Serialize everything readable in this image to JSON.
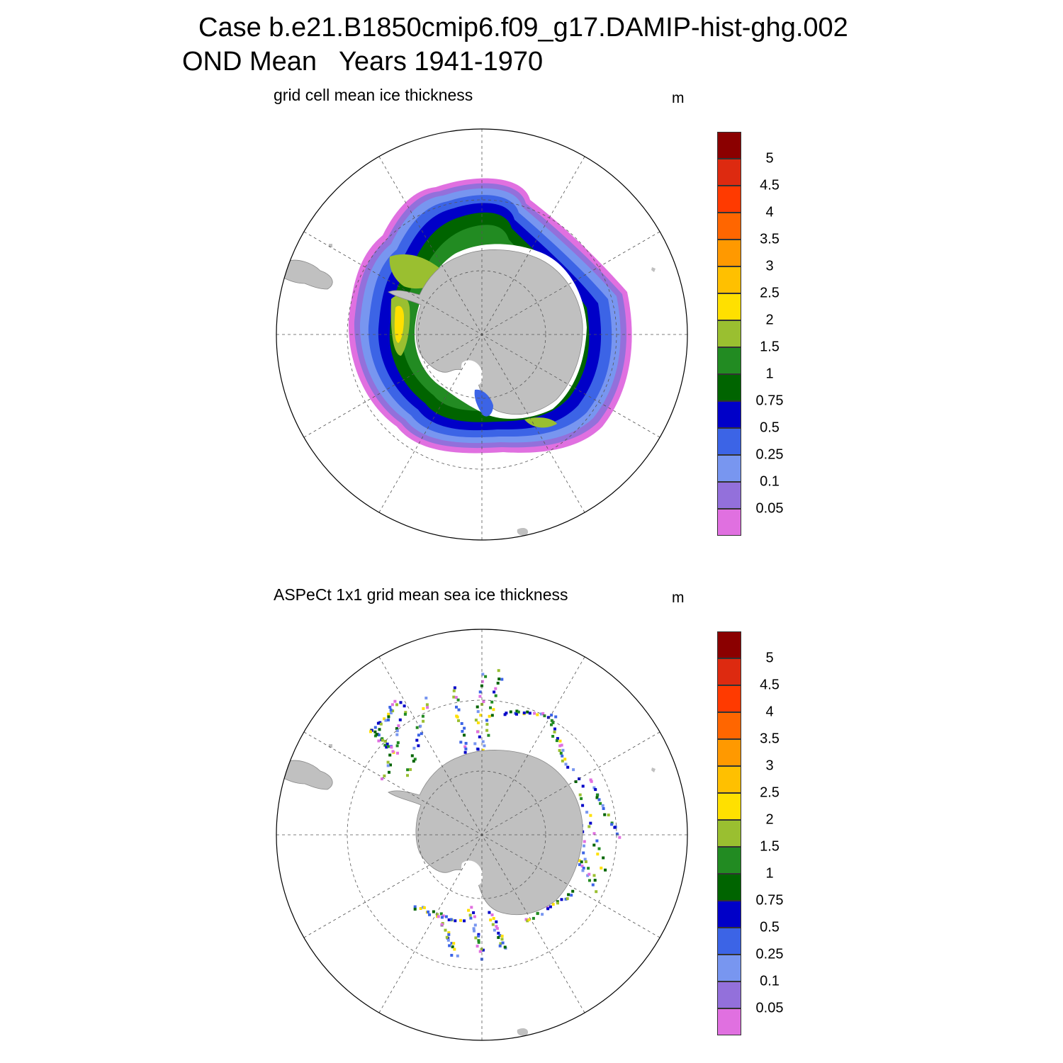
{
  "title_line1": "Case b.e21.B1850cmip6.f09_g17.DAMIP-hist-ghg.002",
  "title_line2": "OND Mean   Years 1941-1970",
  "panels": [
    {
      "subtitle": "grid cell mean ice thickness",
      "units": "m"
    },
    {
      "subtitle": "ASPeCt 1x1 grid mean sea ice thickness",
      "units": "m"
    }
  ],
  "colorbar": {
    "labels": [
      "5",
      "4.5",
      "4",
      "3.5",
      "3",
      "2.5",
      "2",
      "1.5",
      "1",
      "0.75",
      "0.5",
      "0.25",
      "0.1",
      "0.05"
    ],
    "colors": [
      "#8b0000",
      "#dd2a10",
      "#ff3a00",
      "#ff6600",
      "#ff9900",
      "#ffc000",
      "#ffe000",
      "#9abf30",
      "#228b22",
      "#006400",
      "#0000c8",
      "#3c64e6",
      "#7896f0",
      "#9370db",
      "#e070e0"
    ]
  },
  "land_color": "#c0c0c0",
  "chart_data": [
    {
      "type": "heatmap",
      "projection": "south-polar-stereographic",
      "title": "grid cell mean ice thickness",
      "units": "m",
      "levels": [
        0.05,
        0.1,
        0.25,
        0.5,
        0.75,
        1,
        1.5,
        2,
        2.5,
        3,
        3.5,
        4,
        4.5,
        5
      ],
      "description_of_field": "continuous sea ice ring around Antarctica; thickest (>2 m) along the Antarctic Peninsula west coast and Weddell Sea coast, mostly 0.75-1.5 m in Weddell and Ross seas, thinning to <0.25 m at the ice edge"
    },
    {
      "type": "heatmap",
      "projection": "south-polar-stereographic",
      "title": "ASPeCt 1x1 grid mean sea ice thickness",
      "units": "m",
      "levels": [
        0.05,
        0.1,
        0.25,
        0.5,
        0.75,
        1,
        1.5,
        2,
        2.5,
        3,
        3.5,
        4,
        4.5,
        5
      ],
      "description_of_field": "sparse ship-track observations, densest in East Antarctic sector, mostly 0.25-1.5 m"
    }
  ]
}
